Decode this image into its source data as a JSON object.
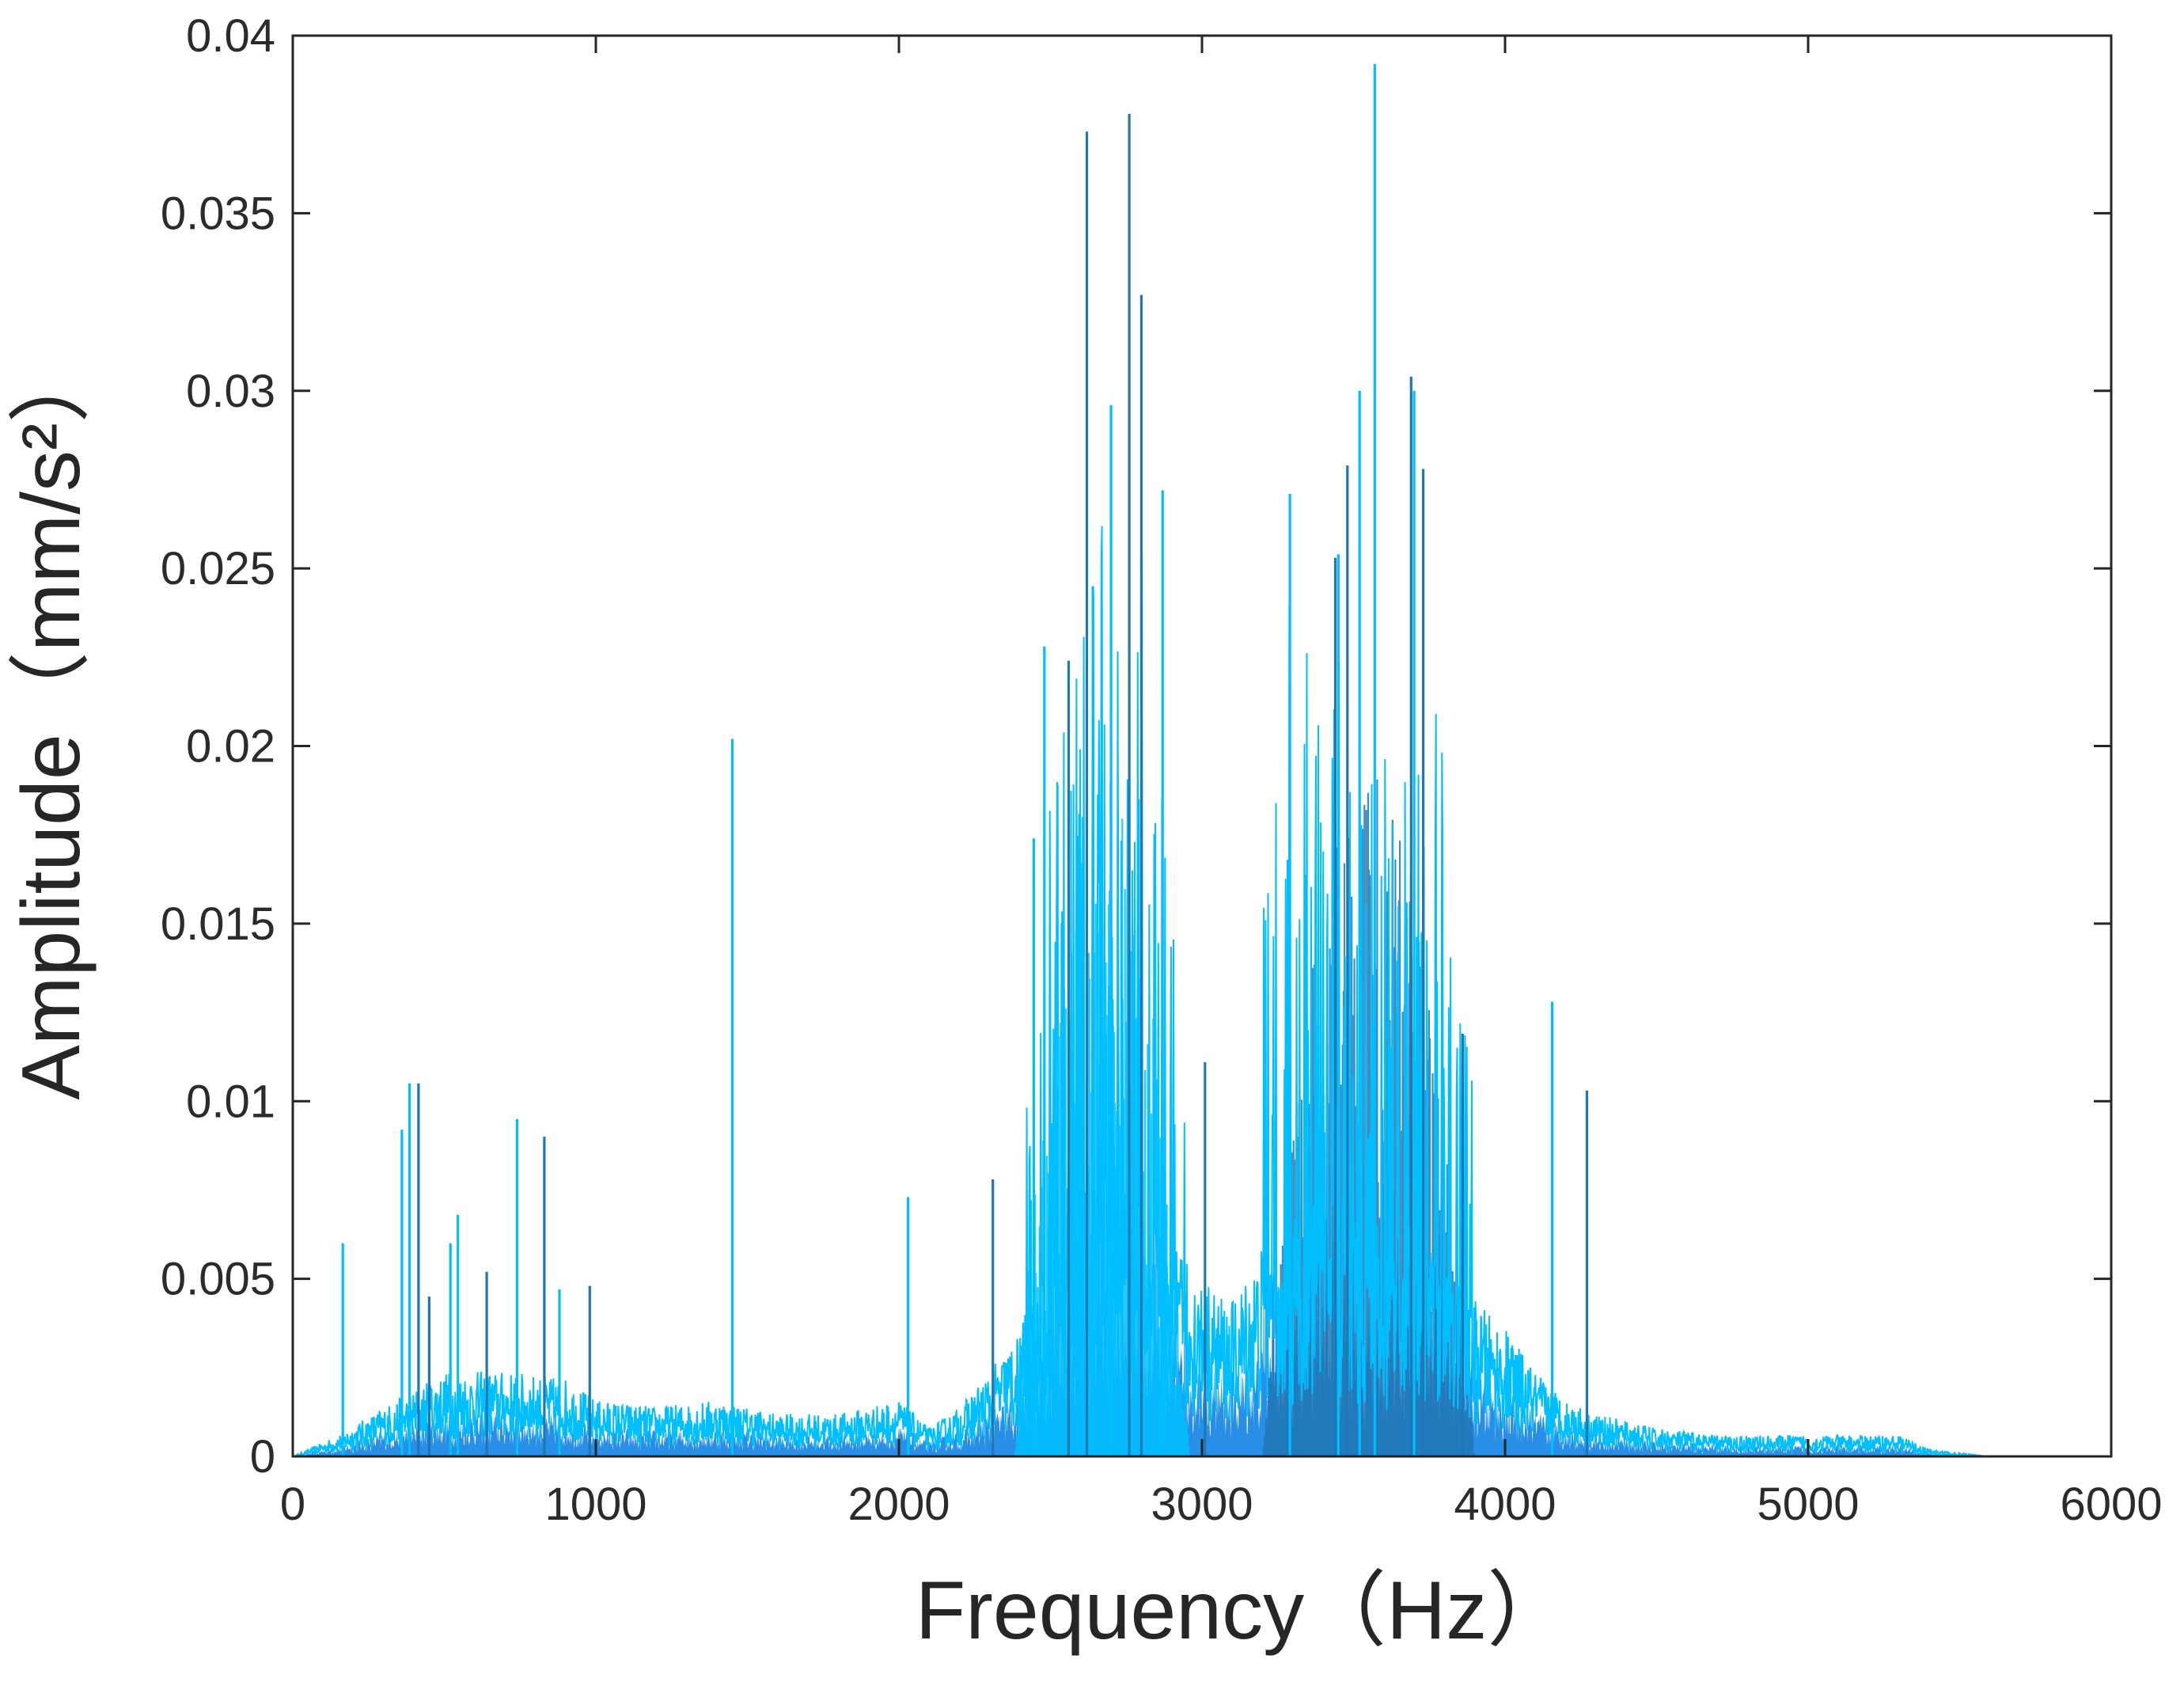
{
  "chart_data": {
    "type": "line",
    "xlabel": "Frequency（Hz）",
    "ylabel": "Amplitude（mm/s²）",
    "xlim": [
      0,
      6000
    ],
    "ylim": [
      0,
      0.04
    ],
    "x_ticks": [
      "0",
      "1000",
      "2000",
      "3000",
      "4000",
      "5000",
      "6000"
    ],
    "y_ticks": [
      "0",
      "0.005",
      "0.01",
      "0.015",
      "0.02",
      "0.025",
      "0.03",
      "0.035",
      "0.04"
    ],
    "grid": false,
    "legend": "none",
    "colors": {
      "light_series": "#00bfff",
      "dark_series": "#1f77b4",
      "fill": "#1e88e5",
      "axes": "#262626"
    },
    "series": [
      {
        "color": "#00bfff",
        "peaks": [
          {
            "x": 165,
            "y": 0.006
          },
          {
            "x": 360,
            "y": 0.0092
          },
          {
            "x": 385,
            "y": 0.0105
          },
          {
            "x": 520,
            "y": 0.006
          },
          {
            "x": 545,
            "y": 0.0068
          },
          {
            "x": 740,
            "y": 0.0095
          },
          {
            "x": 880,
            "y": 0.0047
          },
          {
            "x": 1450,
            "y": 0.0202
          },
          {
            "x": 2030,
            "y": 0.0073
          },
          {
            "x": 2445,
            "y": 0.0174
          },
          {
            "x": 2480,
            "y": 0.0228
          },
          {
            "x": 2640,
            "y": 0.0245
          },
          {
            "x": 2700,
            "y": 0.0296
          },
          {
            "x": 2870,
            "y": 0.0272
          },
          {
            "x": 3290,
            "y": 0.0271
          },
          {
            "x": 3450,
            "y": 0.0254
          },
          {
            "x": 3520,
            "y": 0.03
          },
          {
            "x": 3570,
            "y": 0.0392
          },
          {
            "x": 3700,
            "y": 0.03
          },
          {
            "x": 4155,
            "y": 0.0128
          }
        ]
      },
      {
        "color": "#1f77b4",
        "peaks": [
          {
            "x": 415,
            "y": 0.0105
          },
          {
            "x": 450,
            "y": 0.0045
          },
          {
            "x": 640,
            "y": 0.0052
          },
          {
            "x": 830,
            "y": 0.009
          },
          {
            "x": 980,
            "y": 0.0048
          },
          {
            "x": 2310,
            "y": 0.0078
          },
          {
            "x": 2560,
            "y": 0.0224
          },
          {
            "x": 2620,
            "y": 0.0373
          },
          {
            "x": 2760,
            "y": 0.0378
          },
          {
            "x": 2800,
            "y": 0.0327
          },
          {
            "x": 3010,
            "y": 0.0111
          },
          {
            "x": 3440,
            "y": 0.0253
          },
          {
            "x": 3480,
            "y": 0.0279
          },
          {
            "x": 3690,
            "y": 0.0304
          },
          {
            "x": 3730,
            "y": 0.0278
          },
          {
            "x": 3860,
            "y": 0.0119
          },
          {
            "x": 4270,
            "y": 0.0103
          }
        ]
      }
    ],
    "envelope": {
      "x": [
        0,
        150,
        300,
        500,
        700,
        900,
        1000,
        1200,
        1400,
        1600,
        1800,
        2000,
        2100,
        2200,
        2300,
        2400,
        2500,
        2600,
        2700,
        2800,
        2900,
        3000,
        3100,
        3200,
        3300,
        3400,
        3500,
        3600,
        3700,
        3800,
        3900,
        4000,
        4100,
        4200,
        4300,
        4500,
        4700,
        5000,
        5300,
        5400,
        5600,
        6000
      ],
      "y": [
        0.0,
        0.0003,
        0.0007,
        0.0012,
        0.0012,
        0.0011,
        0.0008,
        0.0007,
        0.0008,
        0.0006,
        0.0006,
        0.0008,
        0.0004,
        0.0007,
        0.0012,
        0.0018,
        0.0035,
        0.0042,
        0.0045,
        0.0043,
        0.003,
        0.0025,
        0.0022,
        0.003,
        0.0035,
        0.0038,
        0.0035,
        0.0032,
        0.0034,
        0.003,
        0.0022,
        0.0018,
        0.0012,
        0.0008,
        0.0006,
        0.0004,
        0.0003,
        0.0003,
        0.0003,
        0.0001,
        0.0,
        0.0
      ]
    }
  }
}
